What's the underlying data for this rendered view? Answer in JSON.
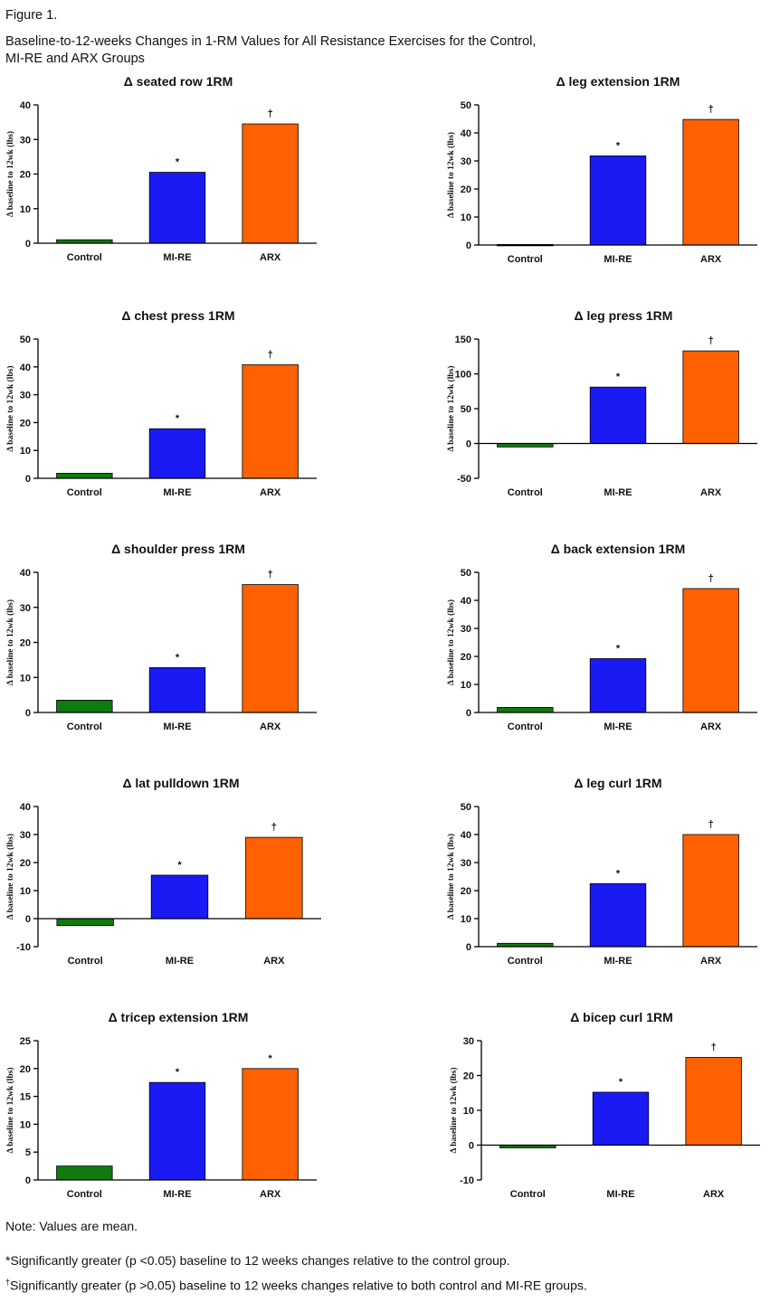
{
  "figure_label": "Figure 1.",
  "figure_title_line1": "Baseline-to-12-weeks Changes in 1-RM Values for All Resistance Exercises for the Control,",
  "figure_title_line2": "MI-RE and ARX Groups",
  "notes": {
    "values": "Note: Values are mean.",
    "star": "*Significantly greater (p <0.05) baseline to 12 weeks changes relative to the control group.",
    "dagger_symbol": "†",
    "dagger": "Significantly greater (p >0.05) baseline to 12 weeks changes relative to both control and MI-RE groups."
  },
  "colors": {
    "Control": "#0f7a0f",
    "MI-RE": "#1a1af5",
    "ARX": "#ff6000"
  },
  "chart_data": [
    {
      "type": "bar",
      "title": "Δ seated row 1RM",
      "ylabel": "Δ baseline to 12wk (lbs)",
      "categories": [
        "Control",
        "MI-RE",
        "ARX"
      ],
      "values": [
        1,
        20.5,
        34.5
      ],
      "marks": [
        "",
        "*",
        "†"
      ],
      "ylim": [
        0,
        40
      ],
      "yticks": [
        0,
        10,
        20,
        30,
        40
      ]
    },
    {
      "type": "bar",
      "title": "Δ leg extension 1RM",
      "ylabel": "Δ baseline to 12wk (lbs)",
      "categories": [
        "Control",
        "MI-RE",
        "ARX"
      ],
      "values": [
        0.2,
        31.8,
        44.8
      ],
      "marks": [
        "",
        "*",
        "†"
      ],
      "ylim": [
        0,
        50
      ],
      "yticks": [
        0,
        10,
        20,
        30,
        40,
        50
      ]
    },
    {
      "type": "bar",
      "title": "Δ chest press 1RM",
      "ylabel": "Δ baseline to 12wk (lbs)",
      "categories": [
        "Control",
        "MI-RE",
        "ARX"
      ],
      "values": [
        1.8,
        17.8,
        40.8
      ],
      "marks": [
        "",
        "*",
        "†"
      ],
      "ylim": [
        0,
        50
      ],
      "yticks": [
        0,
        10,
        20,
        30,
        40,
        50
      ]
    },
    {
      "type": "bar",
      "title": "Δ leg press 1RM",
      "ylabel": "Δ baseline to 12wk (lbs)",
      "categories": [
        "Control",
        "MI-RE",
        "ARX"
      ],
      "values": [
        -5,
        81,
        133
      ],
      "marks": [
        "",
        "*",
        "†"
      ],
      "ylim": [
        -50,
        150
      ],
      "yticks": [
        -50,
        0,
        50,
        100,
        150
      ]
    },
    {
      "type": "bar",
      "title": "Δ shoulder press 1RM",
      "ylabel": "Δ baseline to 12wk (lbs)",
      "categories": [
        "Control",
        "MI-RE",
        "ARX"
      ],
      "values": [
        3.5,
        12.8,
        36.5
      ],
      "marks": [
        "",
        "*",
        "†"
      ],
      "ylim": [
        0,
        40
      ],
      "yticks": [
        0,
        10,
        20,
        30,
        40
      ]
    },
    {
      "type": "bar",
      "title": "Δ back extension 1RM",
      "ylabel": "Δ baseline to 12wk (lbs)",
      "categories": [
        "Control",
        "MI-RE",
        "ARX"
      ],
      "values": [
        1.8,
        19.2,
        44.2
      ],
      "marks": [
        "",
        "*",
        "†"
      ],
      "ylim": [
        0,
        50
      ],
      "yticks": [
        0,
        10,
        20,
        30,
        40,
        50
      ]
    },
    {
      "type": "bar",
      "title": "Δ lat pulldown 1RM",
      "ylabel": "Δ baseline to 12wk (lbs)",
      "categories": [
        "Control",
        "MI-RE",
        "ARX"
      ],
      "values": [
        -2.5,
        15.5,
        29
      ],
      "marks": [
        "",
        "*",
        "†"
      ],
      "ylim": [
        -10,
        40
      ],
      "yticks": [
        -10,
        0,
        10,
        20,
        30,
        40
      ]
    },
    {
      "type": "bar",
      "title": "Δ leg curl 1RM",
      "ylabel": "Δ baseline to 12wk (lbs)",
      "categories": [
        "Control",
        "MI-RE",
        "ARX"
      ],
      "values": [
        1.2,
        22.5,
        40
      ],
      "marks": [
        "",
        "*",
        "†"
      ],
      "ylim": [
        0,
        50
      ],
      "yticks": [
        0,
        10,
        20,
        30,
        40,
        50
      ]
    },
    {
      "type": "bar",
      "title": "Δ tricep extension 1RM",
      "ylabel": "Δ baseline to 12wk (lbs)",
      "categories": [
        "Control",
        "MI-RE",
        "ARX"
      ],
      "values": [
        2.5,
        17.5,
        20
      ],
      "marks": [
        "",
        "*",
        "*"
      ],
      "ylim": [
        0,
        25
      ],
      "yticks": [
        0,
        5,
        10,
        15,
        20,
        25
      ]
    },
    {
      "type": "bar",
      "title": "Δ bicep curl 1RM",
      "ylabel": "Δ baseline to 12wk (lbs)",
      "categories": [
        "Control",
        "MI-RE",
        "ARX"
      ],
      "values": [
        -0.8,
        15.2,
        25.2
      ],
      "marks": [
        "",
        "*",
        "†"
      ],
      "ylim": [
        -10,
        30
      ],
      "yticks": [
        -10,
        0,
        10,
        20,
        30
      ]
    }
  ]
}
